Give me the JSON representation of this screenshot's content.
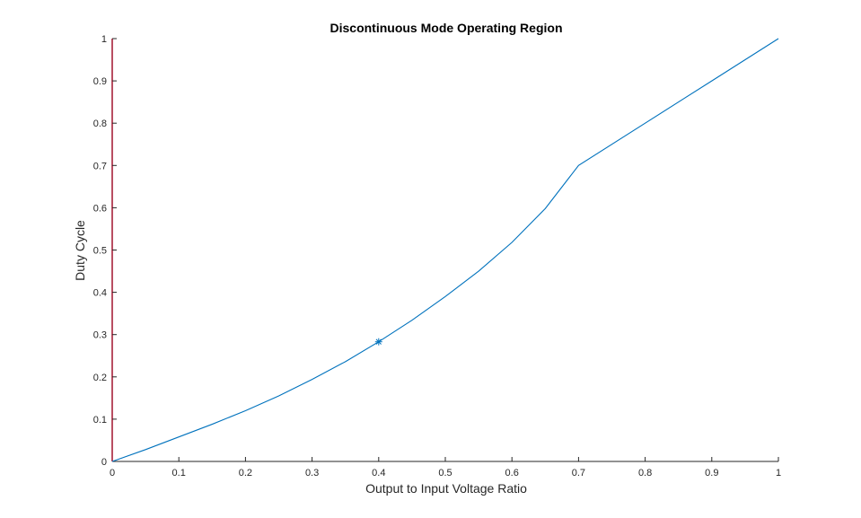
{
  "chart_data": {
    "type": "line",
    "title": "Discontinuous Mode Operating Region",
    "xlabel": "Output to Input Voltage Ratio",
    "ylabel": "Duty Cycle",
    "xlim": [
      0,
      1
    ],
    "ylim": [
      0,
      1
    ],
    "xticks": [
      "0",
      "0.1",
      "0.2",
      "0.3",
      "0.4",
      "0.5",
      "0.6",
      "0.7",
      "0.8",
      "0.9",
      "1"
    ],
    "yticks": [
      "0",
      "0.1",
      "0.2",
      "0.3",
      "0.4",
      "0.5",
      "0.6",
      "0.7",
      "0.8",
      "0.9",
      "1"
    ],
    "grid": false,
    "series": [
      {
        "x": [
          0,
          0.05,
          0.1,
          0.15,
          0.2,
          0.25,
          0.3,
          0.35,
          0.4,
          0.45,
          0.5,
          0.55,
          0.6,
          0.65,
          0.7,
          0.8,
          0.9,
          1.0
        ],
        "y": [
          0,
          0.028,
          0.058,
          0.088,
          0.12,
          0.155,
          0.194,
          0.236,
          0.283,
          0.334,
          0.39,
          0.45,
          0.518,
          0.598,
          0.7,
          0.8,
          0.9,
          1.0
        ],
        "color": "#0072BD"
      }
    ],
    "marker_point": {
      "x": 0.4,
      "y": 0.283,
      "symbol": "asterisk",
      "color": "#0072BD"
    },
    "y_axis_line_color": "#A2142F"
  }
}
